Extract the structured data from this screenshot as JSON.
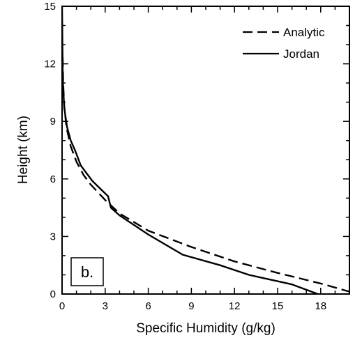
{
  "chart_data": {
    "type": "line",
    "panel_label": "b.",
    "xlabel": "Specific Humidity (g/kg)",
    "ylabel": "Height (km)",
    "xlim": [
      0,
      20
    ],
    "ylim": [
      0,
      15
    ],
    "xticks": [
      0,
      3,
      6,
      9,
      12,
      15,
      18
    ],
    "yticks": [
      0,
      3,
      6,
      9,
      12,
      15
    ],
    "grid": false,
    "legend": "top-right",
    "series": [
      {
        "name": "Analytic",
        "style": "dashed",
        "points": [
          {
            "x": 20.1,
            "y": 0.1
          },
          {
            "x": 18.0,
            "y": 0.55
          },
          {
            "x": 15.0,
            "y": 1.1
          },
          {
            "x": 12.0,
            "y": 1.7
          },
          {
            "x": 9.0,
            "y": 2.45
          },
          {
            "x": 6.0,
            "y": 3.3
          },
          {
            "x": 4.0,
            "y": 4.2
          },
          {
            "x": 3.0,
            "y": 4.9
          },
          {
            "x": 2.0,
            "y": 5.7
          },
          {
            "x": 1.5,
            "y": 6.2
          },
          {
            "x": 1.0,
            "y": 6.9
          },
          {
            "x": 0.6,
            "y": 7.7
          },
          {
            "x": 0.3,
            "y": 8.7
          },
          {
            "x": 0.15,
            "y": 9.8
          },
          {
            "x": 0.08,
            "y": 11.0
          },
          {
            "x": 0.04,
            "y": 12.5
          }
        ]
      },
      {
        "name": "Jordan",
        "style": "solid",
        "points": [
          {
            "x": 17.8,
            "y": 0.0
          },
          {
            "x": 16.0,
            "y": 0.5
          },
          {
            "x": 13.0,
            "y": 1.0
          },
          {
            "x": 11.0,
            "y": 1.5
          },
          {
            "x": 8.4,
            "y": 2.05
          },
          {
            "x": 6.0,
            "y": 3.1
          },
          {
            "x": 4.0,
            "y": 4.1
          },
          {
            "x": 3.4,
            "y": 4.5
          },
          {
            "x": 3.2,
            "y": 5.1
          },
          {
            "x": 2.1,
            "y": 5.9
          },
          {
            "x": 1.3,
            "y": 6.7
          },
          {
            "x": 0.9,
            "y": 7.5
          },
          {
            "x": 0.6,
            "y": 8.0
          },
          {
            "x": 0.35,
            "y": 8.7
          },
          {
            "x": 0.15,
            "y": 9.7
          },
          {
            "x": 0.05,
            "y": 11.2
          },
          {
            "x": 0.0,
            "y": 15.0
          }
        ]
      }
    ]
  }
}
